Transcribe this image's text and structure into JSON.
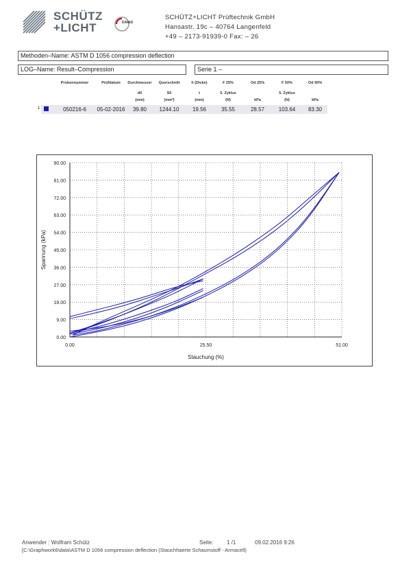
{
  "logo": {
    "line1": "SCHÜTZ",
    "line2": "+LICHT",
    "accreditation": "DAkkS"
  },
  "company": {
    "name": "SCHÜTZ+LICHT Prüftechnik GmbH",
    "address": "Hansastr. 19c – 40764 Langenfeld",
    "phone": "+49 – 2173-91939-0 Fax: – 26"
  },
  "header": {
    "method": "Methoden–Name: ASTM D 1056 compression deflection",
    "log": "LOG–Name: Result–Compression",
    "serie": "Serie 1 –"
  },
  "table": {
    "headers": [
      "Probennummer",
      "Prüfdatum",
      "Durchmesser",
      "Querschnitt",
      "h (Dicke)",
      "F 25%",
      "Od 25%",
      "F 50%",
      "Od 50%"
    ],
    "subheaders": [
      "",
      "",
      "d0",
      "S0",
      "t",
      "5. Zyklus",
      "",
      "5. Zyklus",
      ""
    ],
    "units": [
      "",
      "",
      "(mm)",
      "(mm²)",
      "(mm)",
      "(N)",
      "kPa",
      "(N)",
      "kPa"
    ],
    "row": {
      "index": "1",
      "marker_color": "#1a1ab8",
      "values": [
        "050216-6",
        "05-02-2016",
        "39.80",
        "1244.10",
        "19.56",
        "35.55",
        "28.57",
        "103.64",
        "83.30"
      ]
    }
  },
  "chart_data": {
    "type": "line",
    "xlabel": "Stauchung (%)",
    "ylabel": "Spannung (kPa)",
    "xlim": [
      0,
      51
    ],
    "ylim": [
      0,
      90
    ],
    "x_ticks": [
      "0.00",
      "25.50",
      "51.00"
    ],
    "y_ticks": [
      "0.00",
      "9.00",
      "18.00",
      "27.00",
      "36.00",
      "45.00",
      "54.00",
      "63.00",
      "72.00",
      "81.00",
      "90.00"
    ],
    "grid": true,
    "series_color": "#1a1ab8",
    "series": [
      {
        "x": [
          0,
          5,
          10,
          15,
          20,
          25,
          30,
          35,
          40,
          45,
          50.5
        ],
        "y": [
          0,
          2.5,
          5.5,
          9.5,
          14.5,
          20.5,
          27.5,
          36,
          47,
          62,
          85
        ]
      },
      {
        "x": [
          50.5,
          45,
          40,
          35,
          30,
          25,
          20,
          15,
          10,
          5,
          0.5
        ],
        "y": [
          85,
          72,
          60,
          50,
          41,
          33,
          25.5,
          19,
          13,
          7,
          1
        ]
      },
      {
        "x": [
          0.5,
          5,
          10,
          15,
          20,
          25,
          30,
          35,
          40,
          45,
          50.5
        ],
        "y": [
          1,
          3,
          6.5,
          10.5,
          15.5,
          21.5,
          28.5,
          37,
          48,
          63,
          85
        ]
      },
      {
        "x": [
          50.5,
          45,
          40,
          35,
          30,
          25,
          20,
          15,
          10,
          5,
          0
        ],
        "y": [
          85,
          70,
          58,
          48,
          39.5,
          32,
          24.5,
          17.5,
          11.5,
          6,
          2
        ]
      },
      {
        "x": [
          0,
          5,
          10,
          15,
          20,
          25
        ],
        "y": [
          2,
          5,
          9,
          13.5,
          18.5,
          25
        ]
      },
      {
        "x": [
          25,
          20,
          15,
          10,
          5,
          0
        ],
        "y": [
          30,
          23,
          17,
          11.5,
          6.5,
          2
        ]
      },
      {
        "x": [
          0,
          5,
          10,
          15,
          20,
          25
        ],
        "y": [
          1.5,
          4,
          7.5,
          12,
          17.5,
          24
        ]
      },
      {
        "x": [
          25,
          20,
          15,
          10,
          5,
          0
        ],
        "y": [
          29,
          26,
          21.5,
          17.5,
          14,
          10.5
        ]
      },
      {
        "x": [
          0,
          5,
          10,
          15,
          20,
          25
        ],
        "y": [
          3,
          4.5,
          7,
          10.5,
          15,
          20.5
        ]
      },
      {
        "x": [
          25,
          20,
          15,
          10,
          5,
          0
        ],
        "y": [
          30,
          25,
          20.5,
          16,
          12.5,
          9.5
        ]
      }
    ]
  },
  "footer": {
    "user": "Anwender : Wolfram Schütz",
    "page_label": "Seite:",
    "page": "1 /1",
    "datetime": "09.02.2016   9:26",
    "path": "[C:\\Graphwork6\\data\\ASTM D 1056 compression deflection (Stauchhaerte Schaumstoff - Armacell)"
  }
}
